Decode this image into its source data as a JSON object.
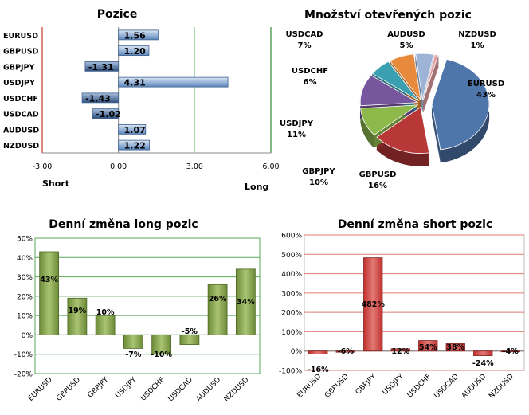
{
  "colors": {
    "positive_bar": "#5b86bc",
    "negative_bar": "#2f527f",
    "green_bar": "#6c8b37",
    "red_bar": "#c0302e",
    "axis_green": "#2f8b2f",
    "axis_red": "#c0392b"
  },
  "chart_data": [
    {
      "type": "bar",
      "orientation": "horizontal",
      "title": "Pozice",
      "categories": [
        "EURUSD",
        "GBPUSD",
        "GBPJPY",
        "USDJPY",
        "USDCHF",
        "USDCAD",
        "AUDUSD",
        "NZDUSD"
      ],
      "values": [
        1.56,
        1.2,
        -1.31,
        4.31,
        -1.43,
        -1.02,
        1.07,
        1.22
      ],
      "value_labels": [
        "1.56",
        "1.20",
        "-1.31",
        "4.31",
        "-1.43",
        "-1.02",
        "1.07",
        "1.22"
      ],
      "xlim": [
        -3,
        6
      ],
      "xticks": [
        "-3.00",
        "0.00",
        "3.00",
        "6.00"
      ],
      "left_label": "Short",
      "right_label": "Long"
    },
    {
      "type": "pie",
      "title": "Množství otevřených pozic",
      "labels": [
        "EURUSD",
        "GBPUSD",
        "GBPJPY",
        "USDJPY",
        "USDCHF",
        "USDCAD",
        "AUDUSD",
        "NZDUSD"
      ],
      "values": [
        43,
        16,
        10,
        11,
        6,
        7,
        5,
        1
      ],
      "value_labels": [
        "43%",
        "16%",
        "10%",
        "11%",
        "6%",
        "7%",
        "5%",
        "1%"
      ],
      "colors": [
        "#4f76ab",
        "#b83737",
        "#8db94b",
        "#76579e",
        "#3a9fb0",
        "#e88a3b",
        "#9db4d6",
        "#e4a3a3"
      ]
    },
    {
      "type": "bar",
      "title": "Denní změna long pozic",
      "categories": [
        "EURUSD",
        "GBPUSD",
        "GBPJPY",
        "USDJPY",
        "USDCHF",
        "USDCAD",
        "AUDUSD",
        "NZDUSD"
      ],
      "values": [
        43,
        19,
        10,
        -7,
        -10,
        -5,
        26,
        34
      ],
      "value_labels": [
        "43%",
        "19%",
        "10%",
        "-7%",
        "-10%",
        "-5%",
        "26%",
        "34%"
      ],
      "ylim": [
        -20,
        50
      ],
      "yticks": [
        "-20%",
        "-10%",
        "0%",
        "10%",
        "20%",
        "30%",
        "40%",
        "50%"
      ]
    },
    {
      "type": "bar",
      "title": "Denní změna short pozic",
      "categories": [
        "EURUSD",
        "GBPUSD",
        "GBPJPY",
        "USDJPY",
        "USDCHF",
        "USDCAD",
        "AUDUSD",
        "NZDUSD"
      ],
      "values": [
        -16,
        -6,
        482,
        12,
        54,
        38,
        -24,
        -4
      ],
      "value_labels": [
        "-16%",
        "-6%",
        "482%",
        "12%",
        "54%",
        "38%",
        "-24%",
        "-4%"
      ],
      "ylim": [
        -100,
        600
      ],
      "yticks": [
        "-100%",
        "0%",
        "100%",
        "200%",
        "300%",
        "400%",
        "500%",
        "600%"
      ]
    }
  ]
}
